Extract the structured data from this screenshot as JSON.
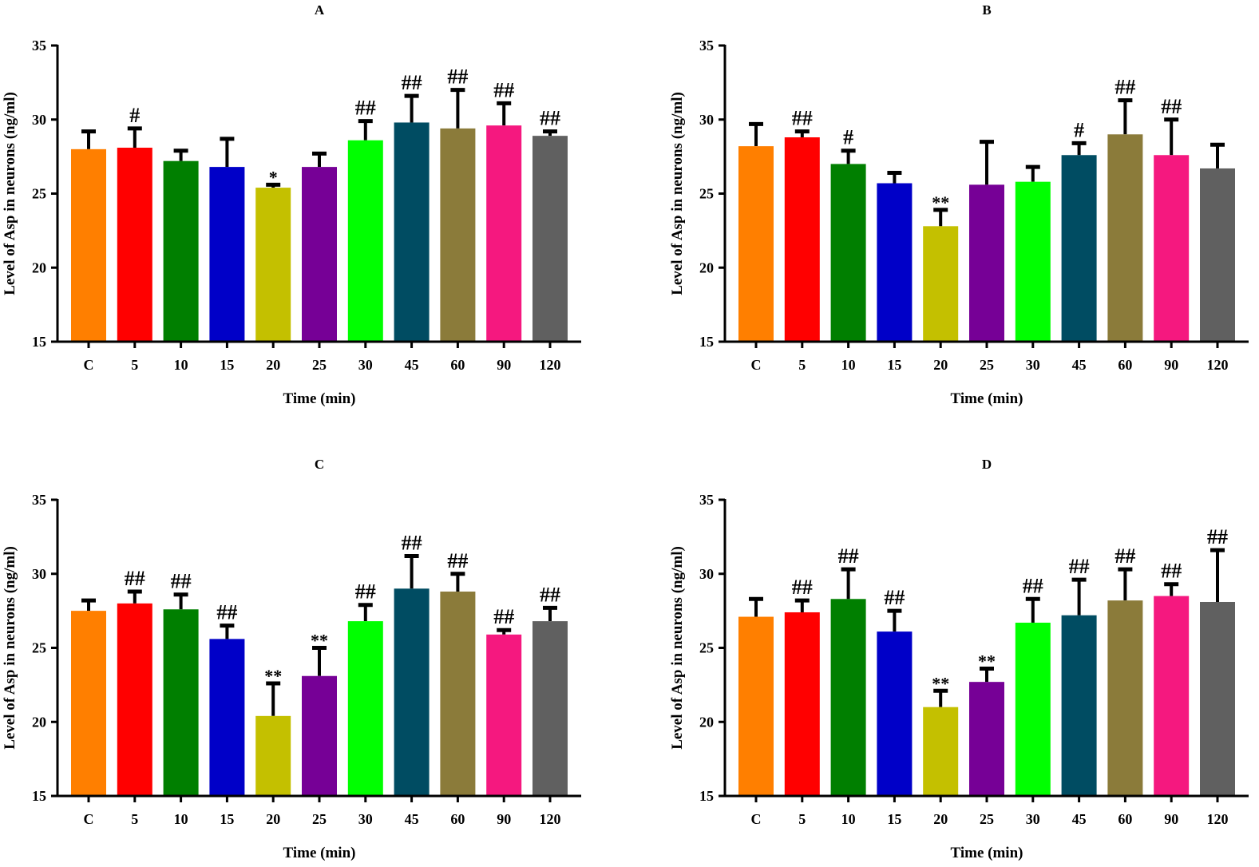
{
  "chart_data": [
    {
      "type": "bar",
      "title": "A",
      "categories": [
        "C",
        "5",
        "10",
        "15",
        "20",
        "25",
        "30",
        "45",
        "60",
        "90",
        "120"
      ],
      "values": [
        28.0,
        28.1,
        27.2,
        26.8,
        25.4,
        26.8,
        28.6,
        29.8,
        29.4,
        29.6,
        28.9
      ],
      "error_upper": [
        29.2,
        29.4,
        27.9,
        28.7,
        25.6,
        27.7,
        29.9,
        31.6,
        32.0,
        31.1,
        29.2
      ],
      "annotations": [
        "",
        "#",
        "",
        "",
        "*",
        "",
        "##",
        "##",
        "##",
        "##",
        "##"
      ],
      "xlabel": "Time (min)",
      "ylabel": "Level of Asp in neurons (ng/ml)",
      "ylim": [
        15,
        35
      ],
      "yticks": [
        15,
        20,
        25,
        30,
        35
      ],
      "grid": false
    },
    {
      "type": "bar",
      "title": "B",
      "categories": [
        "C",
        "5",
        "10",
        "15",
        "20",
        "25",
        "30",
        "45",
        "60",
        "90",
        "120"
      ],
      "values": [
        28.2,
        28.8,
        27.0,
        25.7,
        22.8,
        25.6,
        25.8,
        27.6,
        29.0,
        27.6,
        26.7
      ],
      "error_upper": [
        29.7,
        29.2,
        27.9,
        26.4,
        23.9,
        28.5,
        26.8,
        28.4,
        31.3,
        30.0,
        28.3
      ],
      "annotations": [
        "",
        "##",
        "#",
        "",
        "**",
        "",
        "",
        "#",
        "##",
        "##",
        ""
      ],
      "xlabel": "Time (min)",
      "ylabel": "Level of Asp in neurons (ng/ml)",
      "ylim": [
        15,
        35
      ],
      "yticks": [
        15,
        20,
        25,
        30,
        35
      ],
      "grid": false
    },
    {
      "type": "bar",
      "title": "C",
      "categories": [
        "C",
        "5",
        "10",
        "15",
        "20",
        "25",
        "30",
        "45",
        "60",
        "90",
        "120"
      ],
      "values": [
        27.5,
        28.0,
        27.6,
        25.6,
        20.4,
        23.1,
        26.8,
        29.0,
        28.8,
        25.9,
        26.8
      ],
      "error_upper": [
        28.2,
        28.8,
        28.6,
        26.5,
        22.6,
        25.0,
        27.9,
        31.2,
        30.0,
        26.2,
        27.7
      ],
      "annotations": [
        "",
        "##",
        "##",
        "##",
        "**",
        "**",
        "##",
        "##",
        "##",
        "##",
        "##"
      ],
      "xlabel": "Time (min)",
      "ylabel": "Level of Asp in neurons (ng/ml)",
      "ylim": [
        15,
        35
      ],
      "yticks": [
        15,
        20,
        25,
        30,
        35
      ],
      "grid": false
    },
    {
      "type": "bar",
      "title": "D",
      "categories": [
        "C",
        "5",
        "10",
        "15",
        "20",
        "25",
        "30",
        "45",
        "60",
        "90",
        "120"
      ],
      "values": [
        27.1,
        27.4,
        28.3,
        26.1,
        21.0,
        22.7,
        26.7,
        27.2,
        28.2,
        28.5,
        28.1
      ],
      "error_upper": [
        28.3,
        28.2,
        30.3,
        27.5,
        22.1,
        23.6,
        28.3,
        29.6,
        30.3,
        29.3,
        31.6
      ],
      "annotations": [
        "",
        "##",
        "##",
        "##",
        "**",
        "**",
        "##",
        "##",
        "##",
        "##",
        "##"
      ],
      "xlabel": "Time (min)",
      "ylabel": "Level of Asp in neurons (ng/ml)",
      "ylim": [
        15,
        35
      ],
      "yticks": [
        15,
        20,
        25,
        30,
        35
      ],
      "grid": false
    }
  ],
  "colors": [
    "#ff7f00",
    "#ff0000",
    "#007f00",
    "#0000c8",
    "#c4c000",
    "#760096",
    "#00ff00",
    "#004c62",
    "#8b7b3a",
    "#f5187f",
    "#606060"
  ]
}
